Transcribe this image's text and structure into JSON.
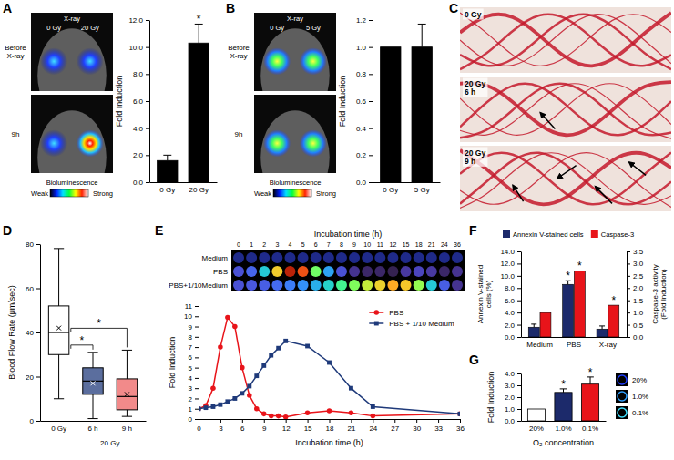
{
  "panels": [
    "A",
    "B",
    "C",
    "D",
    "E",
    "F",
    "G"
  ],
  "chart_data": [
    {
      "type": "bar",
      "categories": [
        "0 Gy",
        "20 Gy"
      ],
      "values": [
        1.6,
        10.3
      ],
      "errors": [
        0.4,
        1.4
      ],
      "color": "#000000",
      "ylabel": "Fold Induction",
      "ylim": [
        0,
        12
      ],
      "yticks": [
        {
          "value": 0,
          "label": "0.0"
        },
        {
          "value": 2,
          "label": "2.0"
        },
        {
          "value": 4,
          "label": "4.0"
        },
        {
          "value": 6,
          "label": "6.0"
        },
        {
          "value": 8,
          "label": "8.0"
        },
        {
          "value": 10,
          "label": "10.0"
        },
        {
          "value": 12,
          "label": "12.0"
        }
      ],
      "annotations": [
        {
          "text": "*",
          "category": "20 Gy"
        }
      ]
    },
    {
      "type": "bar",
      "categories": [
        "0 Gy",
        "5 Gy"
      ],
      "values": [
        1.0,
        1.0
      ],
      "errors": [
        null,
        0.17
      ],
      "color": "#000000",
      "ylabel": "Fold Induction",
      "ylim": [
        0,
        1.2
      ],
      "yticks": [
        {
          "value": 0,
          "label": "0.0"
        },
        0.2,
        0.4,
        0.6,
        0.8,
        {
          "value": 1,
          "label": "1.0"
        },
        1.2
      ]
    },
    {
      "type": "box",
      "categories": [
        "0 Gy",
        "6 h",
        "9 h"
      ],
      "group_labels": [
        {
          "text": "20 Gy",
          "categories": [
            "6 h",
            "9 h"
          ]
        }
      ],
      "boxes": [
        {
          "low": 10,
          "q1": 30,
          "median": 40,
          "q3": 52,
          "high": 78,
          "mean": 42
        },
        {
          "low": 1,
          "q1": 12,
          "median": 18,
          "q3": 24,
          "high": 31,
          "mean": 17
        },
        {
          "low": 2,
          "q1": 5,
          "median": 11,
          "q3": 19,
          "high": 32,
          "mean": 12
        }
      ],
      "colors": [
        "#ffffff",
        "#5b6e9e",
        "#f28a8a"
      ],
      "ylabel": "Blood Flow Rate (μm/sec)",
      "ylim": [
        0,
        80
      ],
      "yticks": [
        0,
        20,
        40,
        60,
        80
      ],
      "annotations": [
        {
          "text": "*",
          "from": "0 Gy",
          "to": "6 h"
        },
        {
          "text": "*",
          "from": "0 Gy",
          "to": "9 h"
        }
      ]
    },
    {
      "type": "line",
      "x": [
        0,
        1,
        2,
        3,
        4,
        5,
        6,
        7,
        8,
        9,
        10,
        11,
        12,
        15,
        18,
        21,
        24,
        36
      ],
      "series": [
        {
          "name": "PBS",
          "color": "#e8141a",
          "marker": "circle",
          "values": [
            1.0,
            1.3,
            3.0,
            7.0,
            9.9,
            9.0,
            5.0,
            2.3,
            1.0,
            0.5,
            0.3,
            0.3,
            0.2,
            0.6,
            0.8,
            0.6,
            0.3,
            0.5
          ]
        },
        {
          "name": "PBS + 1/10 Medium",
          "color": "#1f3a7a",
          "marker": "square",
          "values": [
            1.0,
            1.1,
            1.2,
            1.4,
            1.7,
            2.0,
            2.5,
            3.2,
            4.2,
            5.2,
            6.2,
            6.9,
            7.6,
            7.1,
            5.5,
            3.0,
            1.2,
            0.5
          ]
        }
      ],
      "xlabel": "Incubation time (h)",
      "ylabel": "Fold Induction",
      "xlim": [
        0,
        36
      ],
      "xticks": [
        0,
        3,
        6,
        9,
        12,
        15,
        18,
        21,
        24,
        27,
        30,
        33,
        36
      ],
      "ylim": [
        0,
        11
      ],
      "yticks": [
        0,
        1,
        2,
        3,
        4,
        5,
        6,
        7,
        8,
        9,
        10,
        11
      ],
      "legend": "upper right"
    },
    {
      "type": "bar",
      "categories": [
        "Medium",
        "PBS",
        "X-ray"
      ],
      "series": [
        {
          "name": "Annexin V-stained cells",
          "color": "#1c2a6b",
          "values": [
            1.6,
            8.6,
            1.3
          ],
          "errors": [
            0.5,
            0.6,
            0.5
          ]
        },
        {
          "name": "Caspase-3",
          "color": "#e8141a",
          "values": [
            1.0,
            2.7,
            1.3
          ],
          "axis": "y2"
        }
      ],
      "ylabel": "Annexin V-stained cells (%)",
      "y2label": "Caspase-3 activity (Fold Induction)",
      "ylim": [
        0,
        14
      ],
      "yticks": [
        {
          "value": 0,
          "label": "0.0"
        },
        {
          "value": 2,
          "label": "2.0"
        },
        {
          "value": 4,
          "label": "4.0"
        },
        {
          "value": 6,
          "label": "6.0"
        },
        {
          "value": 8,
          "label": "8.0"
        },
        {
          "value": 10,
          "label": "10.0"
        },
        {
          "value": 12,
          "label": "12.0"
        },
        {
          "value": 14,
          "label": "14.0"
        }
      ],
      "y2lim": [
        0,
        3.5
      ],
      "y2ticks": [
        {
          "value": 0,
          "label": "0.0"
        },
        0.5,
        {
          "value": 1,
          "label": "1.0"
        },
        1.5,
        {
          "value": 2,
          "label": "2.0"
        },
        2.5,
        {
          "value": 3,
          "label": "3.0"
        },
        3.5
      ],
      "legend": "top",
      "annotations": [
        {
          "text": "*",
          "category": "PBS",
          "series": "Annexin V-stained cells"
        },
        {
          "text": "*",
          "category": "PBS",
          "series": "Caspase-3"
        },
        {
          "text": "*",
          "category": "X-ray",
          "series": "Caspase-3"
        }
      ]
    },
    {
      "type": "bar",
      "categories": [
        "20%",
        "1.0%",
        "0.1%"
      ],
      "values": [
        1.0,
        2.4,
        3.1
      ],
      "errors": [
        null,
        0.3,
        0.6
      ],
      "colors": [
        "#ffffff",
        "#1c2a6b",
        "#e8141a"
      ],
      "ylabel": "Fold Induction",
      "xlabel": "O₂ concentration",
      "ylim": [
        0,
        4
      ],
      "yticks": [
        {
          "value": 0,
          "label": "0.0"
        },
        {
          "value": 1,
          "label": "1.0"
        },
        {
          "value": 2,
          "label": "2.0"
        },
        {
          "value": 3,
          "label": "3.0"
        },
        {
          "value": 4,
          "label": "4.0"
        }
      ],
      "annotations": [
        {
          "text": "*",
          "category": "1.0%"
        },
        {
          "text": "*",
          "category": "0.1%"
        }
      ]
    }
  ],
  "images": {
    "A": {
      "beam_label": "X-ray",
      "doses": [
        "0 Gy",
        "20 Gy"
      ],
      "rows": [
        "Before X-ray",
        "9h"
      ],
      "colorbar": {
        "title": "Bioluminescence",
        "low": "Weak",
        "high": "Strong"
      }
    },
    "B": {
      "beam_label": "X-ray",
      "doses": [
        "0 Gy",
        "5 Gy"
      ],
      "rows": [
        "Before X-ray",
        "9h"
      ],
      "colorbar": {
        "title": "Bioluminescence",
        "low": "Weak",
        "high": "Strong"
      }
    },
    "C": {
      "labels": [
        "0 Gy",
        "20 Gy 6 h",
        "20 Gy 9 h"
      ]
    },
    "E": {
      "title": "Incubation time (h)",
      "hours": [
        0,
        1,
        2,
        3,
        4,
        5,
        6,
        7,
        8,
        9,
        10,
        11,
        12,
        15,
        18,
        21,
        24,
        36
      ],
      "rows": [
        "Medium",
        "PBS",
        "PBS+1/10Medium"
      ]
    },
    "G": {
      "labels": [
        "20%",
        "1.0%",
        "0.1%"
      ]
    }
  }
}
